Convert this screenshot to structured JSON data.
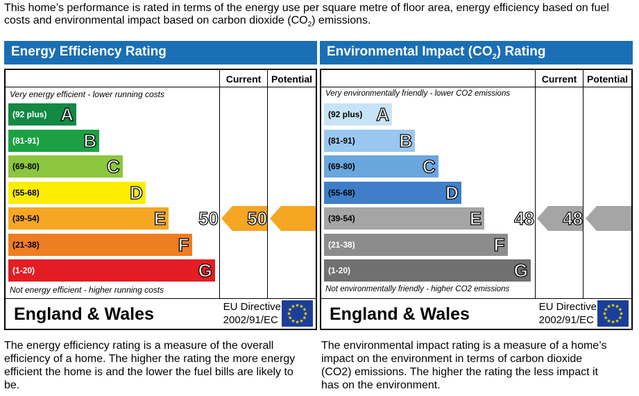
{
  "intro": {
    "text_before": "This home’s performance is rated in terms of the energy use per square metre of floor area, energy efficiency based on fuel costs and environmental impact based on carbon dioxide (CO",
    "sub": "2",
    "text_after": ") emissions."
  },
  "colors": {
    "header_blue": "#1a6fb4",
    "eu_flag": "#1b3f98",
    "eu_stars": "#ffdd00",
    "energy_arrow": "#f6a623",
    "environment_arrow": "#a5a5a5"
  },
  "chart_data": [
    {
      "type": "bar",
      "title": "Energy Efficiency Rating",
      "columns": [
        "Current",
        "Potential"
      ],
      "top_note": "Very energy efficient - lower running costs",
      "bottom_note": "Not energy efficient - higher running costs",
      "bands": [
        {
          "range": "(92 plus)",
          "letter": "A",
          "color": "#138945"
        },
        {
          "range": "(81-91)",
          "letter": "B",
          "color": "#1ca142"
        },
        {
          "range": "(69-80)",
          "letter": "C",
          "color": "#8cc63f"
        },
        {
          "range": "(55-68)",
          "letter": "D",
          "color": "#ffed00"
        },
        {
          "range": "(39-54)",
          "letter": "E",
          "color": "#f6a623"
        },
        {
          "range": "(21-38)",
          "letter": "F",
          "color": "#ef7d21"
        },
        {
          "range": "(1-20)",
          "letter": "G",
          "color": "#e31d23"
        }
      ],
      "current": 50,
      "potential": 50,
      "country": "England & Wales",
      "directive_line1": "EU Directive",
      "directive_line2": "2002/91/EC"
    },
    {
      "type": "bar",
      "title_before": "Environmental Impact (CO",
      "title_sub": "2",
      "title_after": ") Rating",
      "columns": [
        "Current",
        "Potential"
      ],
      "top_note": "Very environmentally friendly - lower CO2 emissions",
      "bottom_note": "Not environmentally friendly - higher CO2 emissions",
      "bands": [
        {
          "range": "(92 plus)",
          "letter": "A",
          "color": "#c8e3f7"
        },
        {
          "range": "(81-91)",
          "letter": "B",
          "color": "#9ac7ef"
        },
        {
          "range": "(69-80)",
          "letter": "C",
          "color": "#6aa6de"
        },
        {
          "range": "(55-68)",
          "letter": "D",
          "color": "#3f7ec9"
        },
        {
          "range": "(39-54)",
          "letter": "E",
          "color": "#a5a5a5"
        },
        {
          "range": "(21-38)",
          "letter": "F",
          "color": "#8c8c8c"
        },
        {
          "range": "(1-20)",
          "letter": "G",
          "color": "#707070"
        }
      ],
      "current": 48,
      "potential": 48,
      "country": "England & Wales",
      "directive_line1": "EU Directive",
      "directive_line2": "2002/91/EC"
    }
  ],
  "descriptions": {
    "energy": "The energy efficiency rating is a measure of the overall efficiency of a home. The higher the rating the more energy efficient the home is and the lower the fuel bills are likely to be.",
    "environment": "The environmental impact rating is a measure of a home’s impact on the environment in terms of carbon dioxide (CO2) emissions. The higher the rating the less impact it has on the environment."
  }
}
